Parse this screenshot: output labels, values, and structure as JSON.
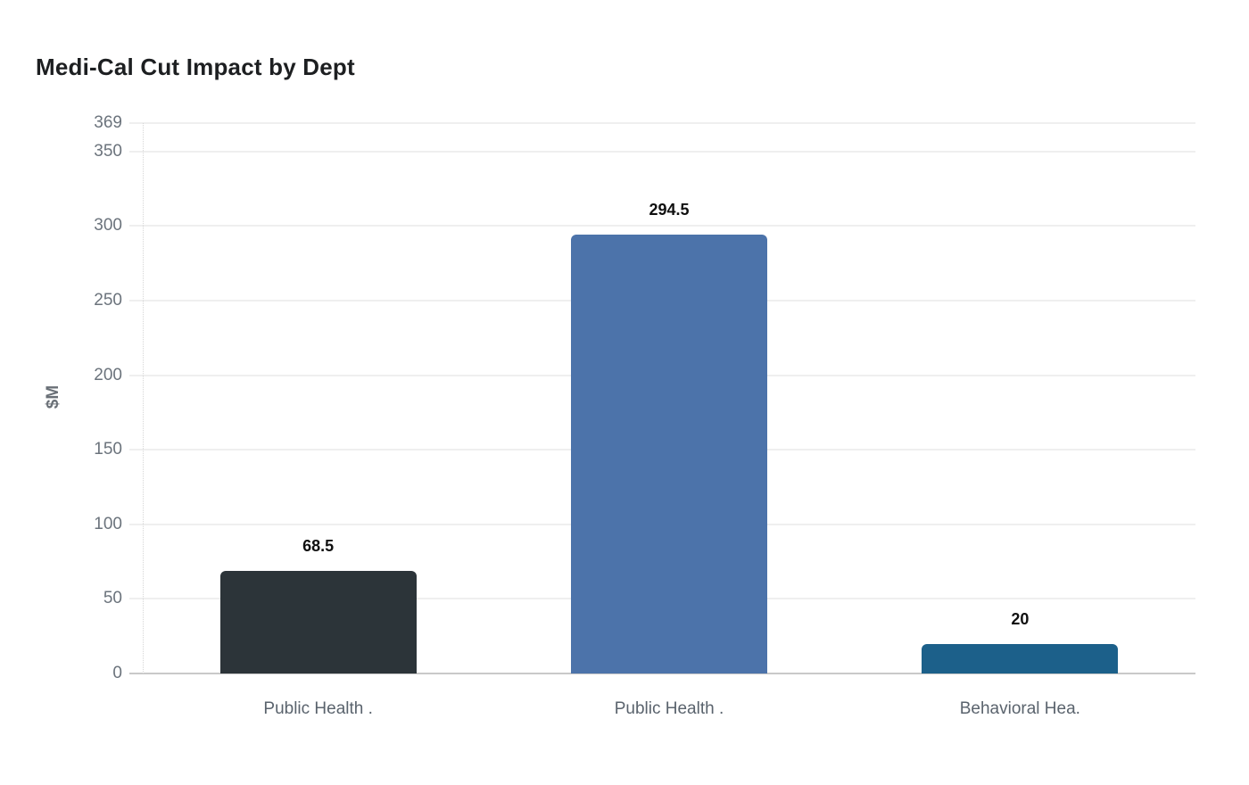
{
  "page": {
    "background": "#ffffff"
  },
  "chart_data": {
    "type": "bar",
    "title": "Medi-Cal Cut Impact by Dept",
    "xlabel": "",
    "ylabel": "$M",
    "categories": [
      "Public Health .",
      "Public Health .",
      "Behavioral Hea."
    ],
    "values": [
      68.5,
      294.5,
      20
    ],
    "value_labels": [
      "68.5",
      "294.5",
      "20"
    ],
    "bar_colors": [
      "#2c3439",
      "#4c73aa",
      "#1c608a"
    ],
    "yticks": [
      0,
      50,
      100,
      150,
      200,
      250,
      300,
      350,
      369
    ],
    "ytick_labels": [
      "0",
      "50",
      "100",
      "150",
      "200",
      "250",
      "300",
      "350",
      "369"
    ],
    "ylim": [
      0,
      369
    ],
    "grid": true,
    "legend": false
  },
  "colors": {
    "title_text": "#1d1f21",
    "axis_label_text": "#6a7077",
    "tick_text": "#6b737c",
    "category_text": "#5a636d",
    "value_text": "#101010",
    "gridline": "#efefef",
    "baseline": "#c9c9c9",
    "dotted_axis": "#d6d6d6"
  }
}
